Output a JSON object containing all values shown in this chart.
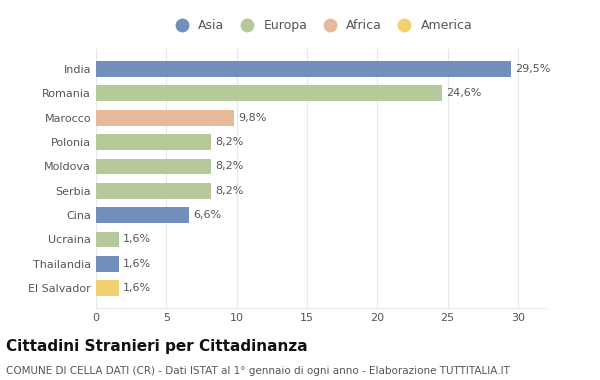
{
  "categories": [
    "India",
    "Romania",
    "Marocco",
    "Polonia",
    "Moldova",
    "Serbia",
    "Cina",
    "Ucraina",
    "Thailandia",
    "El Salvador"
  ],
  "values": [
    29.5,
    24.6,
    9.8,
    8.2,
    8.2,
    8.2,
    6.6,
    1.6,
    1.6,
    1.6
  ],
  "labels": [
    "29,5%",
    "24,6%",
    "9,8%",
    "8,2%",
    "8,2%",
    "8,2%",
    "6,6%",
    "1,6%",
    "1,6%",
    "1,6%"
  ],
  "continents": [
    "Asia",
    "Europa",
    "Africa",
    "Europa",
    "Europa",
    "Europa",
    "Asia",
    "Europa",
    "Asia",
    "America"
  ],
  "colors": {
    "Asia": "#7090bb",
    "Europa": "#b5c99a",
    "Africa": "#e8b89a",
    "America": "#f0d070"
  },
  "legend_order": [
    "Asia",
    "Europa",
    "Africa",
    "America"
  ],
  "xlim": [
    0,
    32
  ],
  "xticks": [
    0,
    5,
    10,
    15,
    20,
    25,
    30
  ],
  "title": "Cittadini Stranieri per Cittadinanza",
  "subtitle": "COMUNE DI CELLA DATI (CR) - Dati ISTAT al 1° gennaio di ogni anno - Elaborazione TUTTITALIA.IT",
  "background_color": "#ffffff",
  "bar_height": 0.65,
  "title_fontsize": 11,
  "subtitle_fontsize": 7.5,
  "label_fontsize": 8,
  "tick_fontsize": 8,
  "legend_fontsize": 9,
  "text_color": "#555555",
  "title_color": "#111111",
  "grid_color": "#e8e8e8"
}
